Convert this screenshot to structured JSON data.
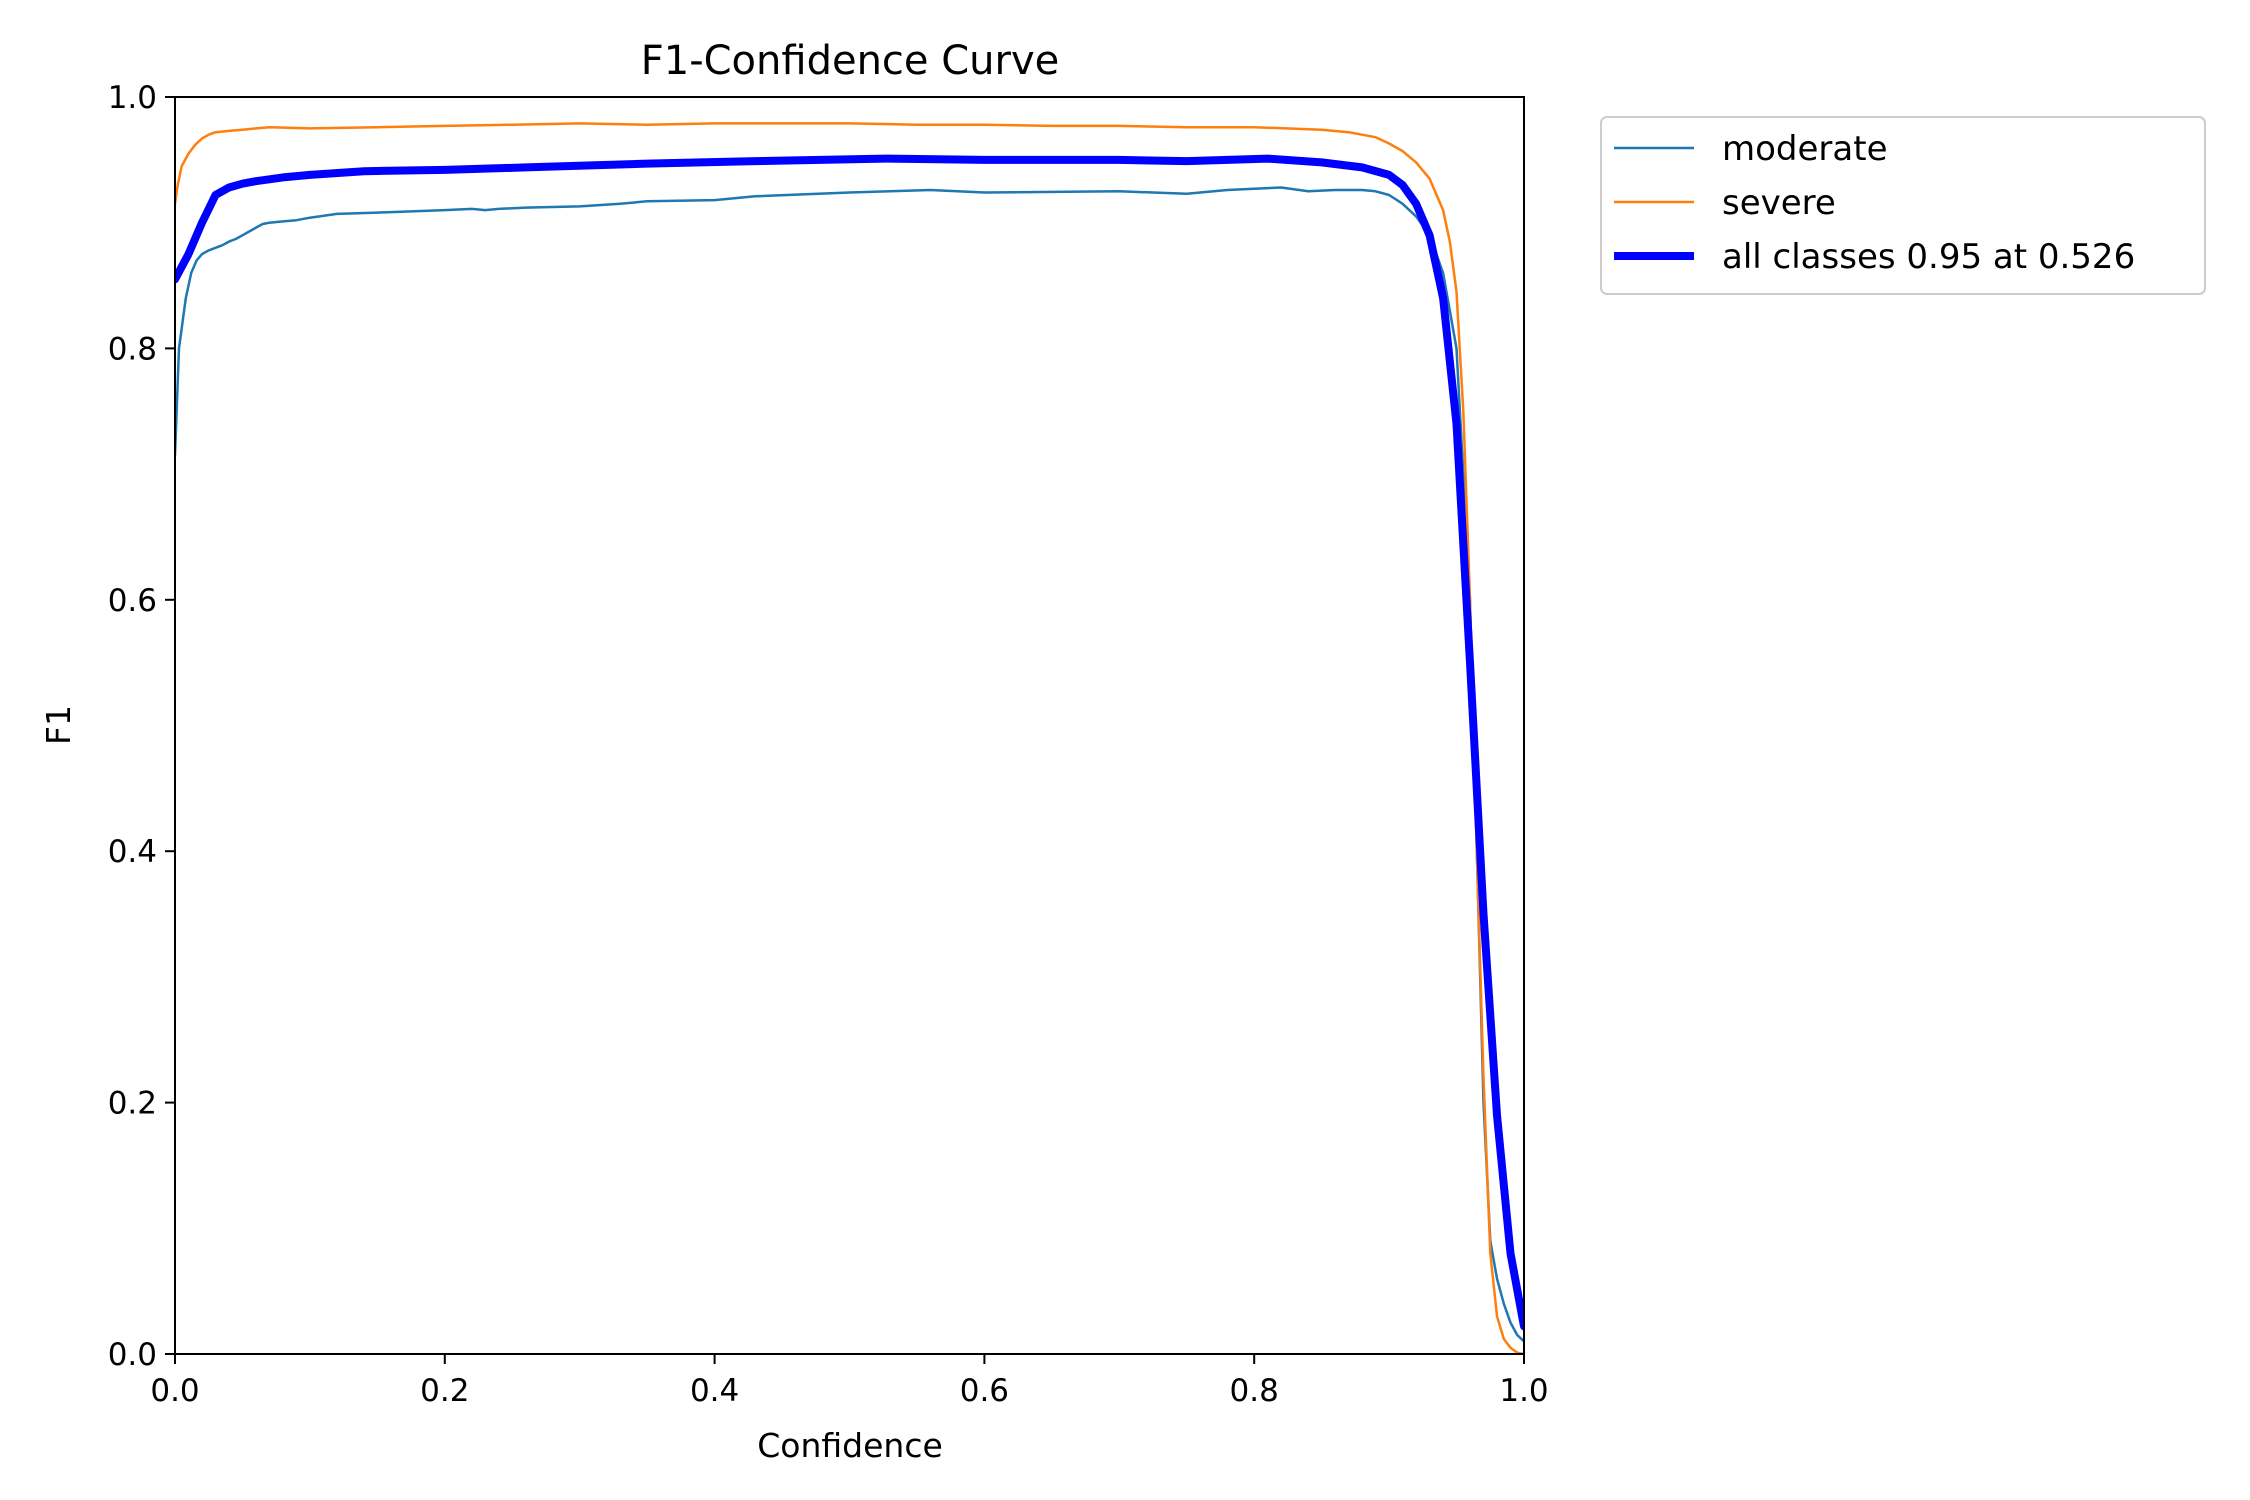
{
  "chart_data": {
    "type": "line",
    "title": "F1-Confidence Curve",
    "xlabel": "Confidence",
    "ylabel": "F1",
    "xlim": [
      0,
      1
    ],
    "ylim": [
      0,
      1
    ],
    "xticks": [
      "0.0",
      "0.2",
      "0.4",
      "0.6",
      "0.8",
      "1.0"
    ],
    "yticks": [
      "0.0",
      "0.2",
      "0.4",
      "0.6",
      "0.8",
      "1.0"
    ],
    "grid": false,
    "legend_position": "outside-top-right",
    "series": [
      {
        "name": "moderate",
        "color": "#1f77b4",
        "x": [
          0.0,
          0.003,
          0.008,
          0.012,
          0.016,
          0.02,
          0.025,
          0.03,
          0.035,
          0.04,
          0.045,
          0.05,
          0.055,
          0.06,
          0.065,
          0.07,
          0.08,
          0.09,
          0.1,
          0.12,
          0.15,
          0.2,
          0.22,
          0.23,
          0.24,
          0.26,
          0.3,
          0.33,
          0.35,
          0.4,
          0.43,
          0.5,
          0.53,
          0.56,
          0.6,
          0.7,
          0.75,
          0.78,
          0.8,
          0.82,
          0.84,
          0.86,
          0.88,
          0.89,
          0.9,
          0.91,
          0.92,
          0.93,
          0.94,
          0.95,
          0.96,
          0.965,
          0.97,
          0.975,
          0.98,
          0.985,
          0.99,
          0.995,
          1.0
        ],
        "y": [
          0.715,
          0.8,
          0.84,
          0.86,
          0.87,
          0.875,
          0.878,
          0.88,
          0.882,
          0.885,
          0.887,
          0.89,
          0.893,
          0.896,
          0.899,
          0.9,
          0.901,
          0.902,
          0.904,
          0.907,
          0.908,
          0.91,
          0.911,
          0.91,
          0.911,
          0.912,
          0.913,
          0.915,
          0.917,
          0.918,
          0.921,
          0.924,
          0.925,
          0.926,
          0.924,
          0.925,
          0.923,
          0.926,
          0.927,
          0.928,
          0.925,
          0.926,
          0.926,
          0.925,
          0.922,
          0.915,
          0.905,
          0.89,
          0.86,
          0.8,
          0.6,
          0.4,
          0.2,
          0.09,
          0.06,
          0.04,
          0.025,
          0.015,
          0.01
        ]
      },
      {
        "name": "severe",
        "color": "#ff7f0e",
        "x": [
          0.0,
          0.002,
          0.005,
          0.01,
          0.015,
          0.02,
          0.025,
          0.03,
          0.04,
          0.05,
          0.06,
          0.07,
          0.1,
          0.15,
          0.2,
          0.25,
          0.3,
          0.35,
          0.4,
          0.45,
          0.5,
          0.55,
          0.6,
          0.65,
          0.7,
          0.75,
          0.8,
          0.85,
          0.87,
          0.89,
          0.9,
          0.91,
          0.92,
          0.93,
          0.94,
          0.945,
          0.95,
          0.955,
          0.96,
          0.965,
          0.97,
          0.975,
          0.98,
          0.985,
          0.99,
          0.995,
          1.0
        ],
        "y": [
          0.915,
          0.93,
          0.945,
          0.955,
          0.962,
          0.967,
          0.97,
          0.972,
          0.973,
          0.974,
          0.975,
          0.976,
          0.975,
          0.976,
          0.977,
          0.978,
          0.979,
          0.978,
          0.979,
          0.979,
          0.979,
          0.978,
          0.978,
          0.977,
          0.977,
          0.976,
          0.976,
          0.974,
          0.972,
          0.968,
          0.963,
          0.957,
          0.948,
          0.935,
          0.91,
          0.885,
          0.845,
          0.75,
          0.6,
          0.4,
          0.22,
          0.08,
          0.03,
          0.012,
          0.005,
          0.001,
          0.0
        ]
      },
      {
        "name": "all classes 0.95 at 0.526",
        "color": "#0000ff",
        "thick": true,
        "x": [
          0.0,
          0.01,
          0.02,
          0.03,
          0.04,
          0.05,
          0.06,
          0.08,
          0.1,
          0.14,
          0.2,
          0.26,
          0.35,
          0.43,
          0.526,
          0.6,
          0.7,
          0.75,
          0.81,
          0.85,
          0.88,
          0.9,
          0.91,
          0.92,
          0.93,
          0.94,
          0.95,
          0.96,
          0.97,
          0.98,
          0.99,
          1.0
        ],
        "y": [
          0.855,
          0.875,
          0.9,
          0.922,
          0.928,
          0.931,
          0.933,
          0.936,
          0.938,
          0.941,
          0.942,
          0.944,
          0.947,
          0.949,
          0.951,
          0.95,
          0.95,
          0.949,
          0.951,
          0.948,
          0.944,
          0.938,
          0.93,
          0.915,
          0.89,
          0.84,
          0.74,
          0.55,
          0.35,
          0.19,
          0.08,
          0.022
        ]
      }
    ]
  }
}
